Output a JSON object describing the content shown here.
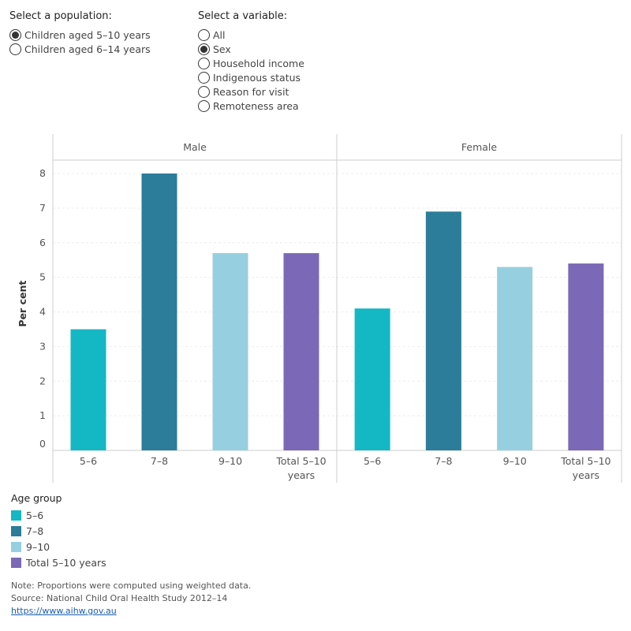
{
  "population_filter": {
    "title": "Select a population:",
    "options": [
      "Children aged 5–10 years",
      "Children aged 6–14 years"
    ],
    "selected": 0
  },
  "variable_filter": {
    "title": "Select a variable:",
    "options": [
      "All",
      "Sex",
      "Household income",
      "Indigenous status",
      "Reason for visit",
      "Remoteness area"
    ],
    "selected": 1
  },
  "chart_data": {
    "type": "bar",
    "panels": [
      "Male",
      "Female"
    ],
    "categories": [
      "5–6",
      "7–8",
      "9–10",
      "Total 5–10 years"
    ],
    "category_labels": [
      [
        "5–6"
      ],
      [
        "7–8"
      ],
      [
        "9–10"
      ],
      [
        "Total 5–10",
        "years"
      ]
    ],
    "values": {
      "Male": [
        3.5,
        8.0,
        5.7,
        5.7
      ],
      "Female": [
        4.1,
        6.9,
        5.3,
        5.4
      ]
    },
    "colors": [
      "#14b8c4",
      "#2b7d99",
      "#96cfe0",
      "#7b68b6"
    ],
    "ylabel": "Per cent",
    "ylim": [
      0,
      8
    ],
    "yticks": [
      0,
      1,
      2,
      3,
      4,
      5,
      6,
      7,
      8
    ],
    "grid": true
  },
  "legend": {
    "title": "Age group",
    "items": [
      {
        "label": "5–6",
        "color": "#14b8c4"
      },
      {
        "label": "7–8",
        "color": "#2b7d99"
      },
      {
        "label": "9–10",
        "color": "#96cfe0"
      },
      {
        "label": "Total 5–10 years",
        "color": "#7b68b6"
      }
    ]
  },
  "notes": {
    "note": "Note: Proportions were computed using weighted data.",
    "source": "Source: National Child Oral Health Study 2012–14",
    "link": "https://www.aihw.gov.au"
  }
}
